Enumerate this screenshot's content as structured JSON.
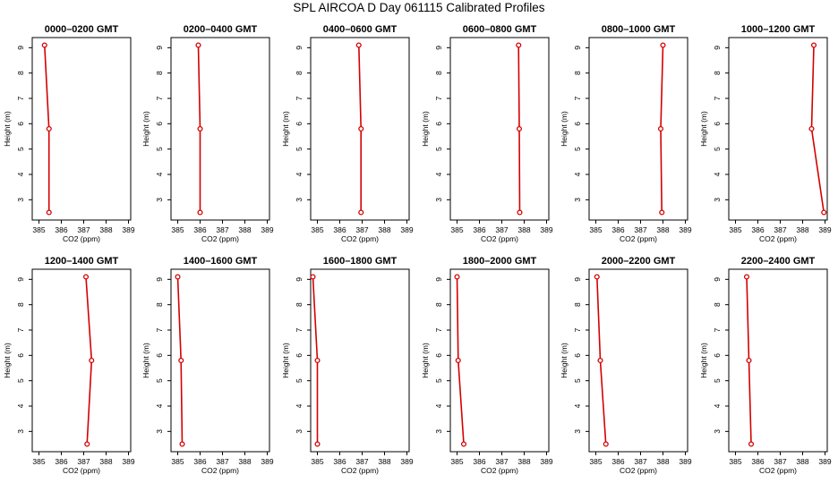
{
  "figure": {
    "title": "SPL AIRCOA D  Day 061115  Calibrated Profiles",
    "series_color": "#d40000"
  },
  "chart_data": [
    {
      "type": "line",
      "title": "0000–0200 GMT",
      "xlabel": "CO2 (ppm)",
      "ylabel": "Height (m)",
      "xlim": [
        384.7,
        389.1
      ],
      "ylim": [
        2.2,
        9.4
      ],
      "xticks": [
        385,
        386,
        387,
        388,
        389
      ],
      "yticks": [
        3,
        4,
        5,
        6,
        7,
        8,
        9
      ],
      "grid": false,
      "series": [
        {
          "x": [
            385.25,
            385.45,
            385.45
          ],
          "y": [
            9.1,
            5.8,
            2.5
          ]
        }
      ]
    },
    {
      "type": "line",
      "title": "0200–0400 GMT",
      "xlabel": "CO2 (ppm)",
      "ylabel": "Height (m)",
      "xlim": [
        384.7,
        389.1
      ],
      "ylim": [
        2.2,
        9.4
      ],
      "xticks": [
        385,
        386,
        387,
        388,
        389
      ],
      "yticks": [
        3,
        4,
        5,
        6,
        7,
        8,
        9
      ],
      "grid": false,
      "series": [
        {
          "x": [
            385.92,
            386.0,
            386.0
          ],
          "y": [
            9.1,
            5.8,
            2.5
          ]
        }
      ]
    },
    {
      "type": "line",
      "title": "0400–0600 GMT",
      "xlabel": "CO2 (ppm)",
      "ylabel": "Height (m)",
      "xlim": [
        384.7,
        389.1
      ],
      "ylim": [
        2.2,
        9.4
      ],
      "xticks": [
        385,
        386,
        387,
        388,
        389
      ],
      "yticks": [
        3,
        4,
        5,
        6,
        7,
        8,
        9
      ],
      "grid": false,
      "series": [
        {
          "x": [
            386.85,
            386.95,
            386.95
          ],
          "y": [
            9.1,
            5.8,
            2.5
          ]
        }
      ]
    },
    {
      "type": "line",
      "title": "0600–0800 GMT",
      "xlabel": "CO2 (ppm)",
      "ylabel": "Height (m)",
      "xlim": [
        384.7,
        389.1
      ],
      "ylim": [
        2.2,
        9.4
      ],
      "xticks": [
        385,
        386,
        387,
        388,
        389
      ],
      "yticks": [
        3,
        4,
        5,
        6,
        7,
        8,
        9
      ],
      "grid": false,
      "series": [
        {
          "x": [
            387.75,
            387.78,
            387.8
          ],
          "y": [
            9.1,
            5.8,
            2.5
          ]
        }
      ]
    },
    {
      "type": "line",
      "title": "0800–1000 GMT",
      "xlabel": "CO2 (ppm)",
      "ylabel": "Height (m)",
      "xlim": [
        384.7,
        389.1
      ],
      "ylim": [
        2.2,
        9.4
      ],
      "xticks": [
        385,
        386,
        387,
        388,
        389
      ],
      "yticks": [
        3,
        4,
        5,
        6,
        7,
        8,
        9
      ],
      "grid": false,
      "series": [
        {
          "x": [
            388.0,
            387.9,
            387.95
          ],
          "y": [
            9.1,
            5.8,
            2.5
          ]
        }
      ]
    },
    {
      "type": "line",
      "title": "1000–1200 GMT",
      "xlabel": "CO2 (ppm)",
      "ylabel": "Height (m)",
      "xlim": [
        384.7,
        389.1
      ],
      "ylim": [
        2.2,
        9.4
      ],
      "xticks": [
        385,
        386,
        387,
        388,
        389
      ],
      "yticks": [
        3,
        4,
        5,
        6,
        7,
        8,
        9
      ],
      "grid": false,
      "series": [
        {
          "x": [
            388.5,
            388.4,
            388.95
          ],
          "y": [
            9.1,
            5.8,
            2.5
          ]
        }
      ]
    },
    {
      "type": "line",
      "title": "1200–1400 GMT",
      "xlabel": "CO2 (ppm)",
      "ylabel": "Height (m)",
      "xlim": [
        384.7,
        389.1
      ],
      "ylim": [
        2.2,
        9.4
      ],
      "xticks": [
        385,
        386,
        387,
        388,
        389
      ],
      "yticks": [
        3,
        4,
        5,
        6,
        7,
        8,
        9
      ],
      "grid": false,
      "series": [
        {
          "x": [
            387.1,
            387.35,
            387.15
          ],
          "y": [
            9.1,
            5.8,
            2.5
          ]
        }
      ]
    },
    {
      "type": "line",
      "title": "1400–1600 GMT",
      "xlabel": "CO2 (ppm)",
      "ylabel": "Height (m)",
      "xlim": [
        384.7,
        389.1
      ],
      "ylim": [
        2.2,
        9.4
      ],
      "xticks": [
        385,
        386,
        387,
        388,
        389
      ],
      "yticks": [
        3,
        4,
        5,
        6,
        7,
        8,
        9
      ],
      "grid": false,
      "series": [
        {
          "x": [
            385.0,
            385.15,
            385.2
          ],
          "y": [
            9.1,
            5.8,
            2.5
          ]
        }
      ]
    },
    {
      "type": "line",
      "title": "1600–1800 GMT",
      "xlabel": "CO2 (ppm)",
      "ylabel": "Height (m)",
      "xlim": [
        384.7,
        389.1
      ],
      "ylim": [
        2.2,
        9.4
      ],
      "xticks": [
        385,
        386,
        387,
        388,
        389
      ],
      "yticks": [
        3,
        4,
        5,
        6,
        7,
        8,
        9
      ],
      "grid": false,
      "series": [
        {
          "x": [
            384.8,
            385.0,
            385.0
          ],
          "y": [
            9.1,
            5.8,
            2.5
          ]
        }
      ]
    },
    {
      "type": "line",
      "title": "1800–2000 GMT",
      "xlabel": "CO2 (ppm)",
      "ylabel": "Height (m)",
      "xlim": [
        384.7,
        389.1
      ],
      "ylim": [
        2.2,
        9.4
      ],
      "xticks": [
        385,
        386,
        387,
        388,
        389
      ],
      "yticks": [
        3,
        4,
        5,
        6,
        7,
        8,
        9
      ],
      "grid": false,
      "series": [
        {
          "x": [
            385.0,
            385.05,
            385.3
          ],
          "y": [
            9.1,
            5.8,
            2.5
          ]
        }
      ]
    },
    {
      "type": "line",
      "title": "2000–2200 GMT",
      "xlabel": "CO2 (ppm)",
      "ylabel": "Height (m)",
      "xlim": [
        384.7,
        389.1
      ],
      "ylim": [
        2.2,
        9.4
      ],
      "xticks": [
        385,
        386,
        387,
        388,
        389
      ],
      "yticks": [
        3,
        4,
        5,
        6,
        7,
        8,
        9
      ],
      "grid": false,
      "series": [
        {
          "x": [
            385.05,
            385.2,
            385.45
          ],
          "y": [
            9.1,
            5.8,
            2.5
          ]
        }
      ]
    },
    {
      "type": "line",
      "title": "2200–2400 GMT",
      "xlabel": "CO2 (ppm)",
      "ylabel": "Height (m)",
      "xlim": [
        384.7,
        389.1
      ],
      "ylim": [
        2.2,
        9.4
      ],
      "xticks": [
        385,
        386,
        387,
        388,
        389
      ],
      "yticks": [
        3,
        4,
        5,
        6,
        7,
        8,
        9
      ],
      "grid": false,
      "series": [
        {
          "x": [
            385.5,
            385.6,
            385.7
          ],
          "y": [
            9.1,
            5.8,
            2.5
          ]
        }
      ]
    }
  ]
}
